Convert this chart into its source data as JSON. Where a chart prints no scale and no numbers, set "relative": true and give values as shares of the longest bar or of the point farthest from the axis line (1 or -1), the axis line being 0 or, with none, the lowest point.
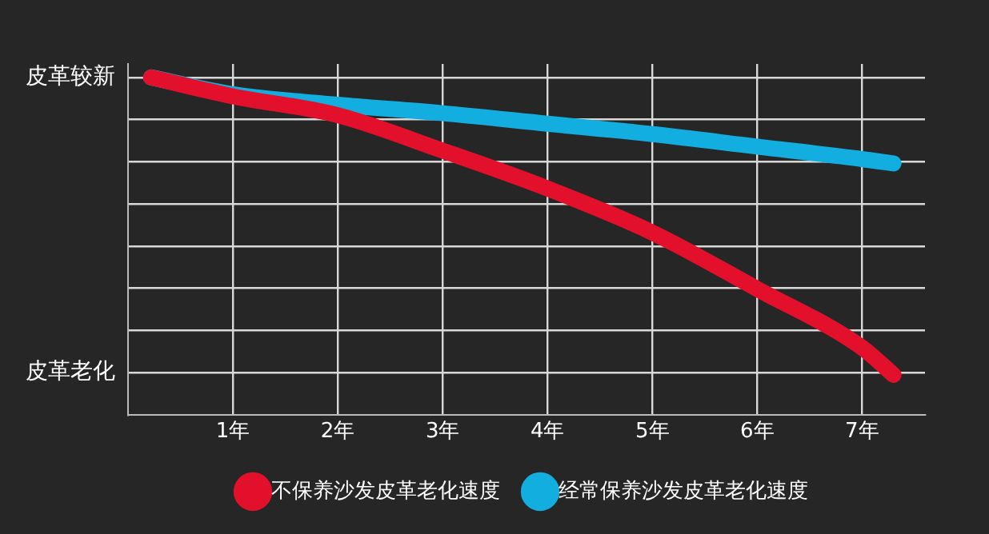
{
  "chart_data": {
    "type": "line",
    "relative": true,
    "xlim": [
      0,
      7.6
    ],
    "xticks": [
      {
        "value": 1,
        "label": "1年"
      },
      {
        "value": 2,
        "label": "2年"
      },
      {
        "value": 3,
        "label": "3年"
      },
      {
        "value": 4,
        "label": "4年"
      },
      {
        "value": 5,
        "label": "5年"
      },
      {
        "value": 6,
        "label": "6年"
      },
      {
        "value": 7,
        "label": "7年"
      }
    ],
    "annotations": [
      "皮革较新",
      "皮革老化"
    ],
    "series": [
      {
        "name": "不保养沙发皮革老化速度",
        "color": "#e3102c",
        "x": [
          0.22,
          1,
          2,
          3,
          4,
          5,
          6,
          7,
          7.3
        ],
        "values": [
          1,
          0.944,
          0.888,
          0.783,
          0.671,
          0.54,
          0.373,
          0.199,
          0.118
        ]
      },
      {
        "name": "经常保养沙发皮革老化速度",
        "color": "#12aee0",
        "x": [
          0.22,
          1,
          2,
          3,
          4,
          5,
          6,
          7,
          7.3
        ],
        "values": [
          1,
          0.95,
          0.919,
          0.894,
          0.863,
          0.832,
          0.795,
          0.758,
          0.745
        ]
      }
    ],
    "grid": true,
    "legend": "bottom",
    "marker": "none",
    "line_style": "solid"
  }
}
